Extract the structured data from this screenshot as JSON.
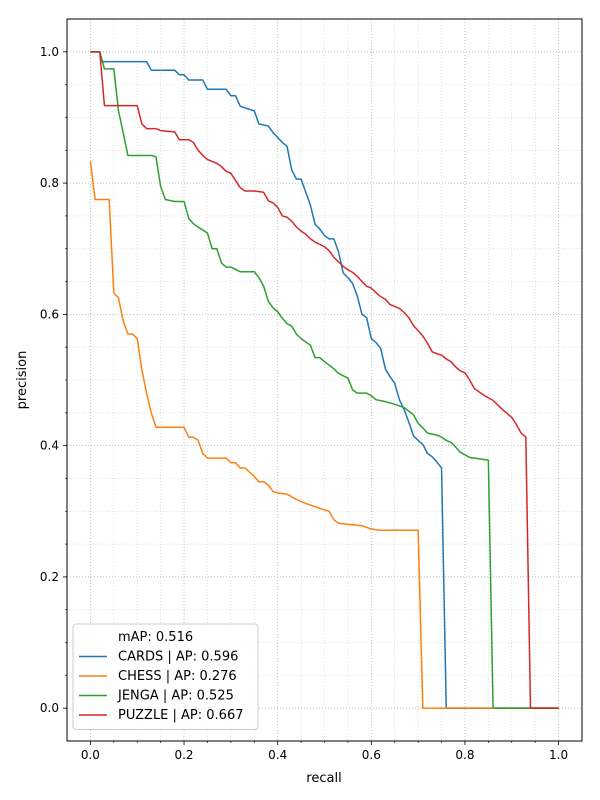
{
  "chart_data": {
    "type": "line",
    "xlabel": "recall",
    "ylabel": "precision",
    "xlim": [
      -0.05,
      1.05
    ],
    "ylim": [
      -0.05,
      1.05
    ],
    "x_ticks": [
      0.0,
      0.2,
      0.4,
      0.6,
      0.8,
      1.0
    ],
    "x_tick_labels": [
      "0.0",
      "0.2",
      "0.4",
      "0.6",
      "0.8",
      "1.0"
    ],
    "y_ticks": [
      0.0,
      0.2,
      0.4,
      0.6,
      0.8,
      1.0
    ],
    "y_tick_labels": [
      "0.0",
      "0.2",
      "0.4",
      "0.6",
      "0.8",
      "1.0"
    ],
    "grid": "major and minor, dotted",
    "legend": {
      "position": "lower-left",
      "header": "mAP: 0.516",
      "entries": [
        "CARDS | AP: 0.596",
        "CHESS | AP: 0.276",
        "JENGA | AP: 0.525",
        "PUZZLE | AP: 0.667"
      ]
    },
    "series": [
      {
        "name": "CARDS | AP: 0.596",
        "color": "#1f77b4",
        "points": [
          [
            0.0,
            1.0
          ],
          [
            0.02,
            1.0
          ],
          [
            0.025,
            0.985
          ],
          [
            0.06,
            0.985
          ],
          [
            0.12,
            0.985
          ],
          [
            0.13,
            0.972
          ],
          [
            0.18,
            0.972
          ],
          [
            0.19,
            0.965
          ],
          [
            0.2,
            0.965
          ],
          [
            0.21,
            0.957
          ],
          [
            0.24,
            0.957
          ],
          [
            0.25,
            0.943
          ],
          [
            0.29,
            0.943
          ],
          [
            0.3,
            0.933
          ],
          [
            0.31,
            0.933
          ],
          [
            0.32,
            0.917
          ],
          [
            0.35,
            0.91
          ],
          [
            0.36,
            0.89
          ],
          [
            0.38,
            0.887
          ],
          [
            0.39,
            0.877
          ],
          [
            0.41,
            0.862
          ],
          [
            0.42,
            0.856
          ],
          [
            0.43,
            0.82
          ],
          [
            0.44,
            0.806
          ],
          [
            0.45,
            0.806
          ],
          [
            0.46,
            0.786
          ],
          [
            0.47,
            0.766
          ],
          [
            0.48,
            0.737
          ],
          [
            0.49,
            0.73
          ],
          [
            0.5,
            0.72
          ],
          [
            0.51,
            0.715
          ],
          [
            0.52,
            0.715
          ],
          [
            0.53,
            0.695
          ],
          [
            0.54,
            0.663
          ],
          [
            0.55,
            0.656
          ],
          [
            0.56,
            0.647
          ],
          [
            0.57,
            0.628
          ],
          [
            0.58,
            0.6
          ],
          [
            0.59,
            0.595
          ],
          [
            0.6,
            0.563
          ],
          [
            0.61,
            0.557
          ],
          [
            0.62,
            0.548
          ],
          [
            0.63,
            0.517
          ],
          [
            0.64,
            0.505
          ],
          [
            0.65,
            0.495
          ],
          [
            0.66,
            0.47
          ],
          [
            0.67,
            0.455
          ],
          [
            0.68,
            0.436
          ],
          [
            0.69,
            0.415
          ],
          [
            0.7,
            0.408
          ],
          [
            0.71,
            0.402
          ],
          [
            0.72,
            0.388
          ],
          [
            0.73,
            0.383
          ],
          [
            0.74,
            0.375
          ],
          [
            0.75,
            0.366
          ],
          [
            0.76,
            0.0
          ],
          [
            1.0,
            0.0
          ]
        ]
      },
      {
        "name": "CHESS | AP: 0.276",
        "color": "#ff7f0e",
        "points": [
          [
            0.0,
            0.833
          ],
          [
            0.01,
            0.775
          ],
          [
            0.04,
            0.775
          ],
          [
            0.05,
            0.633
          ],
          [
            0.06,
            0.625
          ],
          [
            0.07,
            0.59
          ],
          [
            0.08,
            0.57
          ],
          [
            0.09,
            0.57
          ],
          [
            0.1,
            0.563
          ],
          [
            0.11,
            0.515
          ],
          [
            0.12,
            0.48
          ],
          [
            0.13,
            0.45
          ],
          [
            0.14,
            0.428
          ],
          [
            0.2,
            0.428
          ],
          [
            0.21,
            0.413
          ],
          [
            0.22,
            0.413
          ],
          [
            0.23,
            0.408
          ],
          [
            0.24,
            0.388
          ],
          [
            0.25,
            0.381
          ],
          [
            0.29,
            0.381
          ],
          [
            0.3,
            0.374
          ],
          [
            0.31,
            0.374
          ],
          [
            0.32,
            0.366
          ],
          [
            0.33,
            0.366
          ],
          [
            0.35,
            0.353
          ],
          [
            0.36,
            0.345
          ],
          [
            0.37,
            0.345
          ],
          [
            0.38,
            0.34
          ],
          [
            0.39,
            0.33
          ],
          [
            0.4,
            0.328
          ],
          [
            0.42,
            0.326
          ],
          [
            0.44,
            0.318
          ],
          [
            0.46,
            0.312
          ],
          [
            0.48,
            0.307
          ],
          [
            0.5,
            0.302
          ],
          [
            0.51,
            0.3
          ],
          [
            0.52,
            0.287
          ],
          [
            0.53,
            0.282
          ],
          [
            0.55,
            0.28
          ],
          [
            0.58,
            0.278
          ],
          [
            0.6,
            0.273
          ],
          [
            0.62,
            0.271
          ],
          [
            0.66,
            0.271
          ],
          [
            0.7,
            0.271
          ],
          [
            0.71,
            0.0
          ],
          [
            1.0,
            0.0
          ]
        ]
      },
      {
        "name": "JENGA | AP: 0.525",
        "color": "#2ca02c",
        "points": [
          [
            0.0,
            1.0
          ],
          [
            0.02,
            1.0
          ],
          [
            0.03,
            0.974
          ],
          [
            0.05,
            0.974
          ],
          [
            0.06,
            0.91
          ],
          [
            0.07,
            0.877
          ],
          [
            0.08,
            0.842
          ],
          [
            0.13,
            0.842
          ],
          [
            0.14,
            0.84
          ],
          [
            0.15,
            0.795
          ],
          [
            0.16,
            0.775
          ],
          [
            0.18,
            0.772
          ],
          [
            0.2,
            0.772
          ],
          [
            0.21,
            0.746
          ],
          [
            0.22,
            0.738
          ],
          [
            0.23,
            0.733
          ],
          [
            0.25,
            0.724
          ],
          [
            0.26,
            0.7
          ],
          [
            0.27,
            0.7
          ],
          [
            0.28,
            0.678
          ],
          [
            0.29,
            0.672
          ],
          [
            0.3,
            0.672
          ],
          [
            0.32,
            0.665
          ],
          [
            0.35,
            0.665
          ],
          [
            0.36,
            0.656
          ],
          [
            0.37,
            0.643
          ],
          [
            0.38,
            0.62
          ],
          [
            0.39,
            0.61
          ],
          [
            0.4,
            0.604
          ],
          [
            0.41,
            0.594
          ],
          [
            0.42,
            0.586
          ],
          [
            0.43,
            0.582
          ],
          [
            0.44,
            0.57
          ],
          [
            0.45,
            0.563
          ],
          [
            0.47,
            0.553
          ],
          [
            0.48,
            0.534
          ],
          [
            0.49,
            0.534
          ],
          [
            0.5,
            0.528
          ],
          [
            0.52,
            0.517
          ],
          [
            0.53,
            0.51
          ],
          [
            0.55,
            0.503
          ],
          [
            0.56,
            0.485
          ],
          [
            0.57,
            0.48
          ],
          [
            0.59,
            0.48
          ],
          [
            0.6,
            0.476
          ],
          [
            0.61,
            0.47
          ],
          [
            0.63,
            0.467
          ],
          [
            0.65,
            0.463
          ],
          [
            0.67,
            0.458
          ],
          [
            0.69,
            0.447
          ],
          [
            0.7,
            0.434
          ],
          [
            0.71,
            0.427
          ],
          [
            0.72,
            0.419
          ],
          [
            0.74,
            0.416
          ],
          [
            0.75,
            0.413
          ],
          [
            0.76,
            0.408
          ],
          [
            0.77,
            0.405
          ],
          [
            0.78,
            0.398
          ],
          [
            0.79,
            0.39
          ],
          [
            0.8,
            0.386
          ],
          [
            0.81,
            0.382
          ],
          [
            0.83,
            0.38
          ],
          [
            0.85,
            0.378
          ],
          [
            0.86,
            0.0
          ],
          [
            1.0,
            0.0
          ]
        ]
      },
      {
        "name": "PUZZLE | AP: 0.667",
        "color": "#d62728",
        "points": [
          [
            0.0,
            1.0
          ],
          [
            0.02,
            1.0
          ],
          [
            0.03,
            0.918
          ],
          [
            0.05,
            0.918
          ],
          [
            0.1,
            0.918
          ],
          [
            0.11,
            0.89
          ],
          [
            0.12,
            0.883
          ],
          [
            0.14,
            0.883
          ],
          [
            0.15,
            0.88
          ],
          [
            0.18,
            0.878
          ],
          [
            0.19,
            0.866
          ],
          [
            0.21,
            0.866
          ],
          [
            0.22,
            0.862
          ],
          [
            0.23,
            0.85
          ],
          [
            0.24,
            0.842
          ],
          [
            0.25,
            0.836
          ],
          [
            0.26,
            0.833
          ],
          [
            0.27,
            0.83
          ],
          [
            0.28,
            0.825
          ],
          [
            0.29,
            0.818
          ],
          [
            0.3,
            0.815
          ],
          [
            0.31,
            0.804
          ],
          [
            0.32,
            0.793
          ],
          [
            0.33,
            0.788
          ],
          [
            0.35,
            0.788
          ],
          [
            0.37,
            0.786
          ],
          [
            0.38,
            0.773
          ],
          [
            0.39,
            0.77
          ],
          [
            0.4,
            0.763
          ],
          [
            0.41,
            0.75
          ],
          [
            0.42,
            0.748
          ],
          [
            0.43,
            0.742
          ],
          [
            0.44,
            0.733
          ],
          [
            0.45,
            0.727
          ],
          [
            0.46,
            0.722
          ],
          [
            0.47,
            0.715
          ],
          [
            0.48,
            0.71
          ],
          [
            0.5,
            0.703
          ],
          [
            0.51,
            0.697
          ],
          [
            0.52,
            0.687
          ],
          [
            0.53,
            0.68
          ],
          [
            0.54,
            0.673
          ],
          [
            0.55,
            0.668
          ],
          [
            0.56,
            0.664
          ],
          [
            0.57,
            0.658
          ],
          [
            0.58,
            0.65
          ],
          [
            0.59,
            0.643
          ],
          [
            0.6,
            0.64
          ],
          [
            0.61,
            0.633
          ],
          [
            0.62,
            0.627
          ],
          [
            0.63,
            0.623
          ],
          [
            0.64,
            0.615
          ],
          [
            0.65,
            0.612
          ],
          [
            0.66,
            0.609
          ],
          [
            0.67,
            0.603
          ],
          [
            0.68,
            0.595
          ],
          [
            0.69,
            0.583
          ],
          [
            0.7,
            0.575
          ],
          [
            0.71,
            0.567
          ],
          [
            0.72,
            0.556
          ],
          [
            0.73,
            0.543
          ],
          [
            0.74,
            0.54
          ],
          [
            0.75,
            0.538
          ],
          [
            0.76,
            0.532
          ],
          [
            0.77,
            0.528
          ],
          [
            0.78,
            0.52
          ],
          [
            0.79,
            0.514
          ],
          [
            0.8,
            0.511
          ],
          [
            0.81,
            0.5
          ],
          [
            0.82,
            0.487
          ],
          [
            0.83,
            0.482
          ],
          [
            0.84,
            0.477
          ],
          [
            0.85,
            0.473
          ],
          [
            0.86,
            0.469
          ],
          [
            0.87,
            0.462
          ],
          [
            0.88,
            0.455
          ],
          [
            0.89,
            0.449
          ],
          [
            0.9,
            0.443
          ],
          [
            0.91,
            0.432
          ],
          [
            0.92,
            0.419
          ],
          [
            0.93,
            0.413
          ],
          [
            0.94,
            0.0
          ],
          [
            1.0,
            0.0
          ]
        ]
      }
    ]
  }
}
